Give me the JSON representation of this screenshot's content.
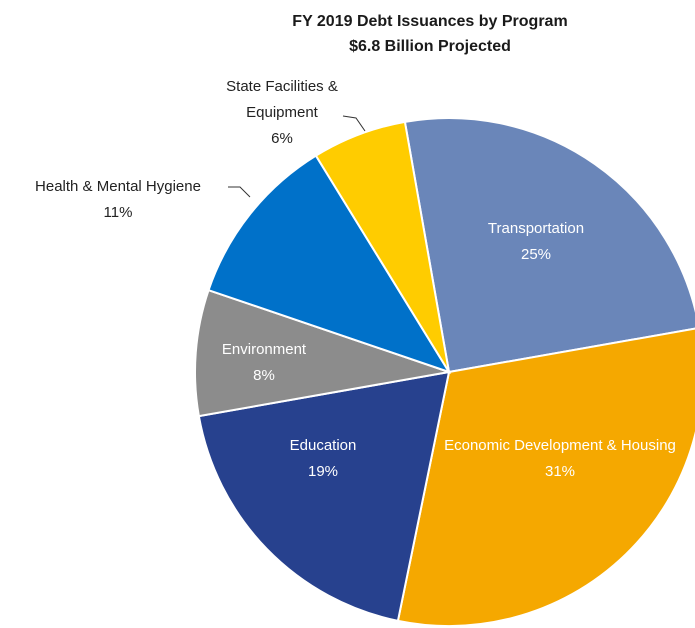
{
  "chart_data": {
    "type": "pie",
    "title": "FY 2019 Debt Issuances  by Program",
    "subtitle": "$6.8 Billion Projected",
    "categories": [
      "Transportation",
      "Economic Development & Housing",
      "Education",
      "Environment",
      "Health & Mental Hygiene",
      "State Facilities & Equipment"
    ],
    "values": [
      25,
      31,
      19,
      8,
      11,
      6
    ],
    "value_labels": [
      "25%",
      "31%",
      "19%",
      "8%",
      "11%",
      "6%"
    ],
    "colors": [
      "#6a86b9",
      "#f5a800",
      "#27418e",
      "#8c8c8c",
      "#0071c9",
      "#ffcc00"
    ]
  }
}
